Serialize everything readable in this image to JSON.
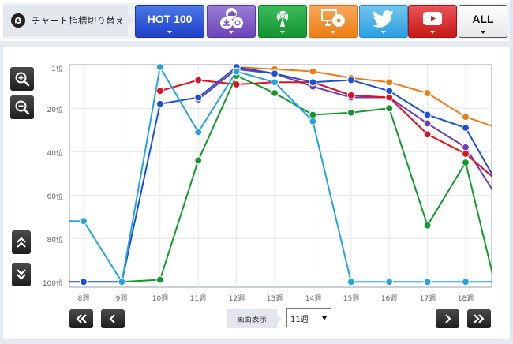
{
  "toolbar": {
    "switch_label": "チャート指標切り替え",
    "switch_icon": "sync-icon",
    "buttons": [
      {
        "id": "hot100",
        "label": "HOT 100",
        "color": "#2b4fd6"
      },
      {
        "id": "sales",
        "label": "",
        "icon": "sales-download-icon",
        "color": "#7a55c6"
      },
      {
        "id": "radio",
        "label": "",
        "icon": "radio-antenna-icon",
        "color": "#1aa33b"
      },
      {
        "id": "lookup",
        "label": "",
        "icon": "pc-cd-icon",
        "color": "#f28a22"
      },
      {
        "id": "twitter",
        "label": "",
        "icon": "twitter-bird-icon",
        "color": "#3db1e8"
      },
      {
        "id": "youtube",
        "label": "",
        "icon": "youtube-play-icon",
        "color": "#d42424"
      },
      {
        "id": "all",
        "label": "ALL",
        "color": "#f4f4f4"
      }
    ]
  },
  "side": {
    "zoom_in": "zoom-in-icon",
    "zoom_out": "zoom-out-icon",
    "scroll_up": "double-chevron-up-icon",
    "scroll_down": "double-chevron-down-icon"
  },
  "footer": {
    "view_label": "画面表示",
    "view_value": "11週",
    "first": "«",
    "prev": "‹",
    "next": "›",
    "last": "»"
  },
  "chart_data": {
    "type": "line",
    "title": "",
    "xlabel": "",
    "ylabel": "",
    "y_inverted": true,
    "ylim": [
      1,
      100
    ],
    "yticks": [
      "1位",
      "20位",
      "40位",
      "60位",
      "80位",
      "100位"
    ],
    "categories": [
      "8週",
      "9週",
      "10週",
      "11週",
      "12週",
      "13週",
      "14週",
      "15週",
      "16週",
      "17週",
      "18週"
    ],
    "grid": true,
    "legend": "none",
    "series": [
      {
        "name": "Twitter",
        "color": "#23a3e0",
        "values": [
          72,
          100,
          1,
          31,
          3,
          8,
          26,
          100,
          100,
          100,
          100
        ],
        "next": 100
      },
      {
        "name": "HOT 100",
        "color": "#1a4fd8",
        "values": [
          100,
          100,
          18,
          15,
          1,
          4,
          8,
          7,
          12,
          23,
          29
        ],
        "next": 60
      },
      {
        "name": "YouTube",
        "color": "#e0101f",
        "values": [
          null,
          null,
          12,
          7,
          9,
          8,
          8,
          14,
          15,
          32,
          41
        ],
        "next": 56
      },
      {
        "name": "Sales",
        "color": "#6c3fb8",
        "values": [
          null,
          null,
          null,
          16,
          2,
          4,
          10,
          15,
          15,
          27,
          38
        ],
        "next": 66
      },
      {
        "name": "Radio",
        "color": "#0f9a2c",
        "values": [
          null,
          100,
          99,
          44,
          5,
          13,
          23,
          22,
          20,
          74,
          45
        ],
        "next": 118
      },
      {
        "name": "Lookup",
        "color": "#f07c10",
        "values": [
          null,
          null,
          null,
          null,
          1,
          2,
          3,
          6,
          8,
          13,
          24
        ],
        "next": 30
      }
    ]
  }
}
